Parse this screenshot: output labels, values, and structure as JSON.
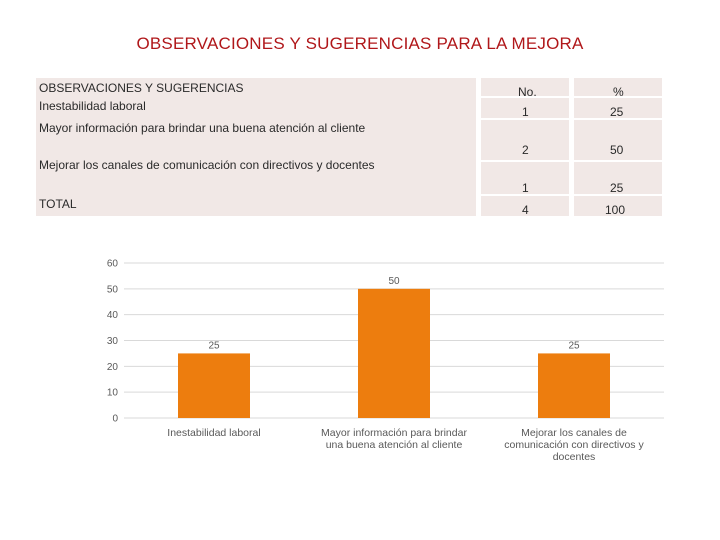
{
  "title": "OBSERVACIONES Y SUGERENCIAS PARA LA MEJORA",
  "table": {
    "headers": [
      "OBSERVACIONES Y SUGERENCIAS",
      "No.",
      "%"
    ],
    "rows": [
      {
        "label": "Inestabilidad laboral",
        "no": "1",
        "pct": "25"
      },
      {
        "label": "Mayor información para brindar una buena atención al cliente",
        "no": "2",
        "pct": "50"
      },
      {
        "label": "Mejorar los canales de comunicación con directivos y docentes",
        "no": "1",
        "pct": "25"
      },
      {
        "label": "TOTAL",
        "no": "4",
        "pct": "100"
      }
    ]
  },
  "colors": {
    "bar": "#ed7d0e",
    "title": "#b0171a",
    "table_bg": "#f1e8e6",
    "grid": "#d9d9d9",
    "axis_text": "#595959"
  },
  "chart_data": {
    "type": "bar",
    "categories": [
      [
        "Inestabilidad laboral"
      ],
      [
        "Mayor información para brindar",
        "una buena atención al cliente"
      ],
      [
        "Mejorar los canales de",
        "comunicación con directivos y",
        "docentes"
      ]
    ],
    "values": [
      25,
      50,
      25
    ],
    "data_labels": [
      "25",
      "50",
      "25"
    ],
    "ylim": [
      0,
      60
    ],
    "yticks": [
      0,
      10,
      20,
      30,
      40,
      50,
      60
    ],
    "grid": true,
    "title": "",
    "xlabel": "",
    "ylabel": ""
  }
}
